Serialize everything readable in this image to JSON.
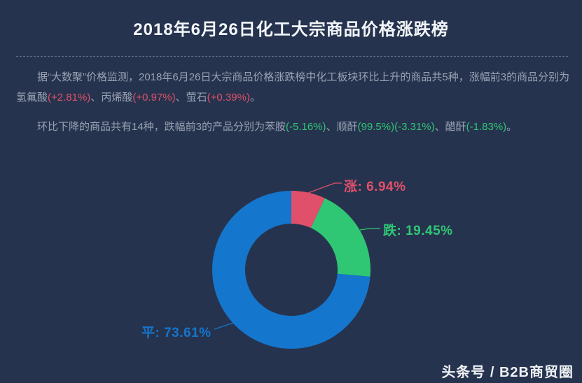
{
  "header": {
    "title": "2018年6月26日化工大宗商品价格涨跌榜"
  },
  "colors": {
    "background": "#26334e",
    "title": "#f3f6fa",
    "body": "#98a2b3",
    "up": "#e0506a",
    "down": "#2fc774",
    "flat": "#1476cc",
    "divider": "#6e7990",
    "watermark": "#eef1f5"
  },
  "paragraphs": [
    {
      "segments": [
        {
          "text": "据“大数聚”价格监测，2018年6月26日大宗商品价格涨跌榜中化工板块环比上升的商品共5种，涨幅前3的商品分别为氢氟酸",
          "color": "body"
        },
        {
          "text": "(+2.81%)",
          "color": "up"
        },
        {
          "text": "、丙烯酸",
          "color": "body"
        },
        {
          "text": "(+0.97%)",
          "color": "up"
        },
        {
          "text": "、萤石",
          "color": "body"
        },
        {
          "text": "(+0.39%)",
          "color": "up"
        },
        {
          "text": "。",
          "color": "body"
        }
      ]
    },
    {
      "segments": [
        {
          "text": "环比下降的商品共有14种，跌幅前3的产品分别为苯胺",
          "color": "body"
        },
        {
          "text": "(-5.16%)",
          "color": "down"
        },
        {
          "text": "、顺酐",
          "color": "body"
        },
        {
          "text": "(99.5%)(-3.31%)",
          "color": "down"
        },
        {
          "text": "、醋酐",
          "color": "body"
        },
        {
          "text": "(-1.83%)",
          "color": "down"
        },
        {
          "text": "。",
          "color": "body"
        }
      ]
    }
  ],
  "chart_data": {
    "type": "pie",
    "subtype": "donut",
    "title": "",
    "unit": "%",
    "start_angle_deg": 0,
    "direction": "clockwise",
    "segments": [
      {
        "label": "涨",
        "value": 6.94,
        "color_key": "up"
      },
      {
        "label": "跌",
        "value": 19.45,
        "color_key": "down"
      },
      {
        "label": "平",
        "value": 73.61,
        "color_key": "flat"
      }
    ]
  },
  "footer": {
    "watermark": "头条号 / B2B商贸圈"
  }
}
